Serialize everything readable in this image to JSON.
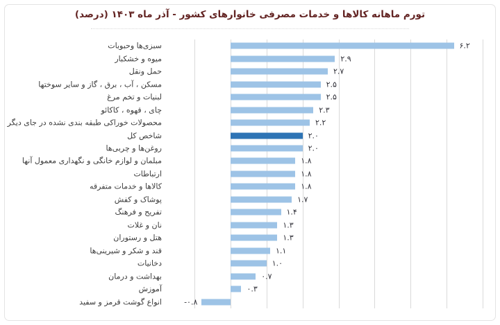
{
  "title": "تورم ماهانه کالاها و خدمات مصرفی خانوارهای کشور - آذر ماه ۱۴۰۳ (درصد)",
  "colors": {
    "title": "#632423",
    "bar": "#9dc3e6",
    "highlight_bar": "#2e74b5",
    "gridline": "#d9d9d9",
    "value_label": "#2e2e36",
    "category_label": "#3c3c3c",
    "card_border": "#e3e3e3"
  },
  "chart_data": {
    "type": "bar",
    "orientation": "horizontal",
    "title": "تورم ماهانه کالاها و خدمات مصرفی خانوارهای کشور - آذر ماه ۱۴۰۳ (درصد)",
    "xlim": [
      -1,
      7
    ],
    "gridline_step": 1,
    "grid": true,
    "legend": "none",
    "highlight_index": 7,
    "categories": [
      "سبزی‌ها وحبوبات",
      "میوه و خشکبار",
      "حمل ونقل",
      "مسکن ، آب ، برق ، گاز و سایر سوختها",
      "لبنیات و تخم مرغ",
      "چای ، قهوه ، کاکائو",
      "محصولات خوراکی طبقه بندی نشده در جای دیگر",
      "شاخص کل",
      "روغن‌ها و چربی‌ها",
      "مبلمان و لوازم خانگی و نگهداری معمول آنها",
      "ارتباطات",
      "کالاها و خدمات متفرقه",
      "پوشاک و کفش",
      "تفریح و فرهنگ",
      "نان و غلات",
      "هتل و رستوران",
      "قند و شکر و شیرینی‌ها",
      "دخانیات",
      "بهداشت و درمان",
      "آموزش",
      "انواع گوشت قرمز و سفید"
    ],
    "values": [
      6.2,
      2.9,
      2.7,
      2.5,
      2.5,
      2.3,
      2.2,
      2.0,
      2.0,
      1.8,
      1.8,
      1.8,
      1.7,
      1.4,
      1.3,
      1.3,
      1.1,
      1.0,
      0.7,
      0.3,
      -0.8
    ],
    "value_labels": [
      "۶.۲",
      "۲.۹",
      "۲.۷",
      "۲.۵",
      "۲.۵",
      "۲.۳",
      "۲.۲",
      "۲.۰",
      "۲.۰",
      "۱.۸",
      "۱.۸",
      "۱.۸",
      "۱.۷",
      "۱.۴",
      "۱.۳",
      "۱.۳",
      "۱.۱",
      "۱.۰",
      "۰.۷",
      "۰.۳",
      "-۰.۸"
    ]
  }
}
